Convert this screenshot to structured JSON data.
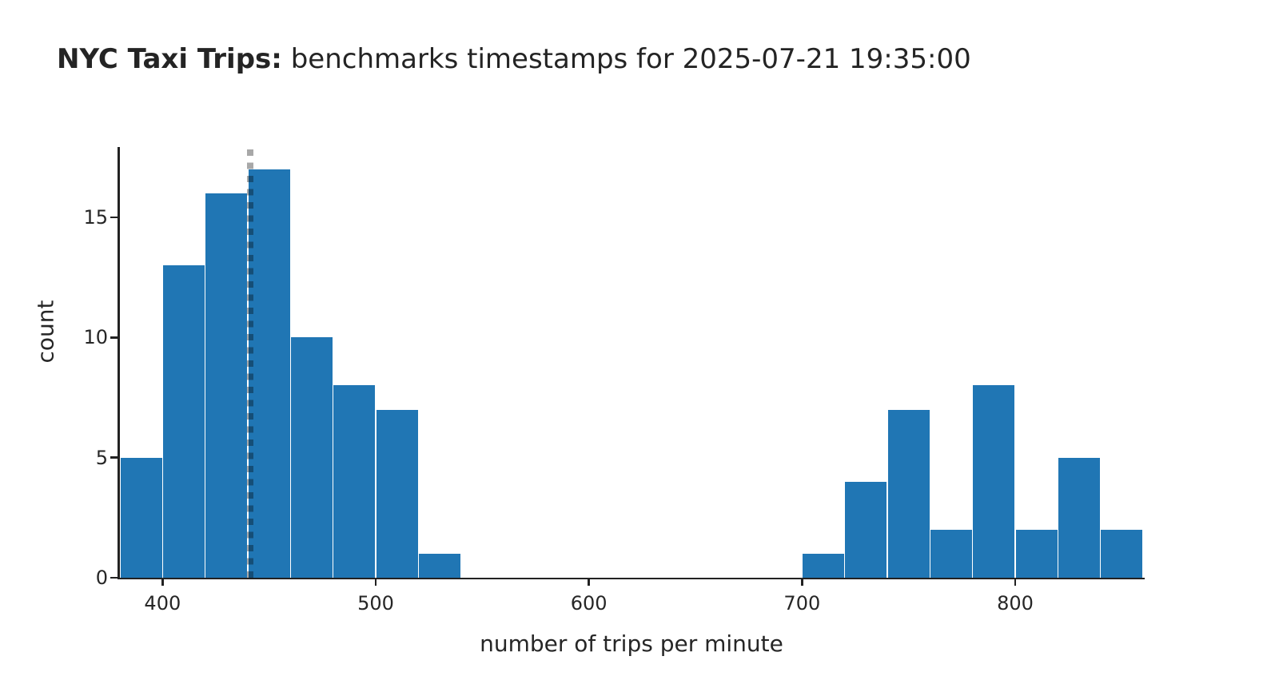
{
  "header": {
    "title_bold": "NYC Taxi Trips:",
    "title_regular": " benchmarks timestamps for 2025-07-21 19:35:00"
  },
  "chart_data": {
    "type": "bar",
    "subtype": "histogram",
    "title": "NYC Taxi Trips: benchmarks timestamps for 2025-07-21 19:35:00",
    "xlabel": "number of trips per minute",
    "ylabel": "count",
    "xlim": [
      380,
      860
    ],
    "ylim": [
      0,
      17.9
    ],
    "x_ticks": [
      400,
      500,
      600,
      700,
      800
    ],
    "y_ticks": [
      0,
      5,
      10,
      15
    ],
    "grid": false,
    "legend": false,
    "bin_width": 20,
    "bin_starts": [
      380,
      400,
      420,
      440,
      460,
      480,
      500,
      520,
      540,
      560,
      580,
      600,
      620,
      640,
      660,
      680,
      700,
      720,
      740,
      760,
      780,
      800,
      820,
      840
    ],
    "counts": [
      5,
      13,
      16,
      17,
      10,
      8,
      7,
      1,
      0,
      0,
      0,
      0,
      0,
      0,
      0,
      0,
      1,
      4,
      7,
      2,
      8,
      2,
      5,
      2
    ],
    "vline": {
      "x": 441,
      "style": "dotted",
      "color": "rgba(0,0,0,0.34)",
      "description": "vertical dotted benchmark marker near x=441"
    },
    "bar_color": "#2076b4",
    "axis_color": "#222222",
    "text_color": "#262626",
    "background_color": "#ffffff"
  }
}
